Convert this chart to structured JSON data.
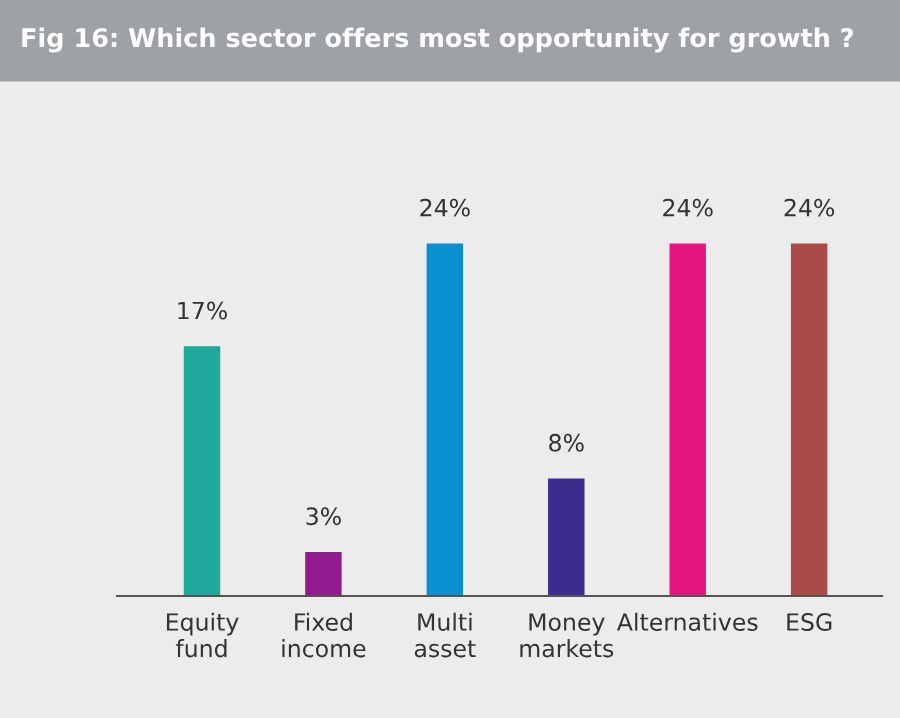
{
  "chart_data": {
    "type": "bar",
    "title": "Fig 16: Which sector offers most opportunity for growth ?",
    "categories": [
      "Equity\nfund",
      "Fixed\nincome",
      "Multi\nasset",
      "Money\nmarkets",
      "Alternatives",
      "ESG"
    ],
    "values": [
      17,
      3,
      24,
      8,
      24,
      24
    ],
    "colors": [
      "#1ea79b",
      "#921b8f",
      "#0b8fd3",
      "#3b2b8c",
      "#e6157f",
      "#a94b49"
    ],
    "value_labels": [
      "17%",
      "3%",
      "24%",
      "8%",
      "24%",
      "24%"
    ],
    "grid": false,
    "legend": false
  }
}
